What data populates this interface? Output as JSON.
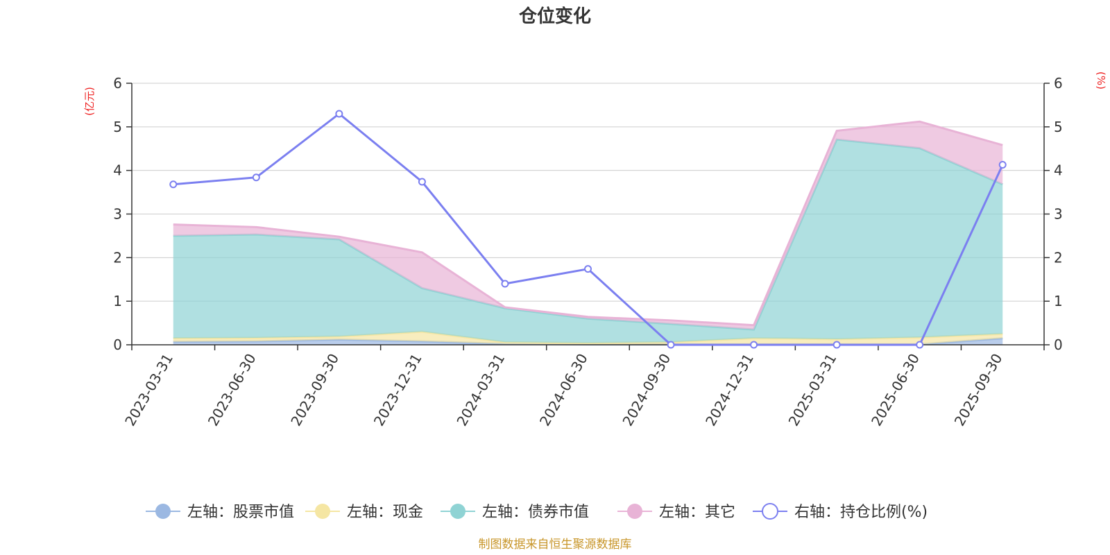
{
  "chart_data": {
    "type": "area",
    "title": "仓位变化",
    "left_unit": "(亿元)",
    "right_unit": "(%)",
    "source_note": "制图数据来自恒生聚源数据库",
    "categories": [
      "2023-03-31",
      "2023-06-30",
      "2023-09-30",
      "2023-12-31",
      "2024-03-31",
      "2024-06-30",
      "2024-09-30",
      "2024-12-31",
      "2025-03-31",
      "2025-06-30",
      "2025-09-30"
    ],
    "left_ylim": [
      0,
      6
    ],
    "right_ylim": [
      0,
      6
    ],
    "left_ticks": [
      "0",
      "1",
      "2",
      "3",
      "4",
      "5",
      "6"
    ],
    "right_ticks": [
      "0",
      "1",
      "2",
      "3",
      "4",
      "5",
      "6"
    ],
    "grid": true,
    "legend_position": "bottom",
    "stacked_series": [
      {
        "name": "左轴：股票市值",
        "color": "#9bb8e2",
        "values": [
          0.07,
          0.08,
          0.12,
          0.08,
          0.02,
          0.01,
          0.01,
          0.01,
          0.01,
          0.01,
          0.15
        ]
      },
      {
        "name": "左轴：现金",
        "color": "#f5e6a3",
        "values": [
          0.08,
          0.08,
          0.07,
          0.22,
          0.04,
          0.03,
          0.05,
          0.14,
          0.12,
          0.16,
          0.1
        ]
      },
      {
        "name": "左轴：债券市值",
        "color": "#8fd3d4",
        "values": [
          2.35,
          2.37,
          2.23,
          1.0,
          0.78,
          0.56,
          0.42,
          0.2,
          4.58,
          4.34,
          3.43
        ]
      },
      {
        "name": "左轴：其它",
        "color": "#e8b3d6",
        "values": [
          0.26,
          0.17,
          0.06,
          0.82,
          0.02,
          0.04,
          0.08,
          0.1,
          0.2,
          0.61,
          0.9
        ]
      }
    ],
    "line_series": {
      "name": "右轴：持仓比例(%)",
      "color": "#7b7ff0",
      "values": [
        3.68,
        3.84,
        5.3,
        3.74,
        1.4,
        1.74,
        0.0,
        0.0,
        0.0,
        0.0,
        4.13
      ]
    }
  }
}
